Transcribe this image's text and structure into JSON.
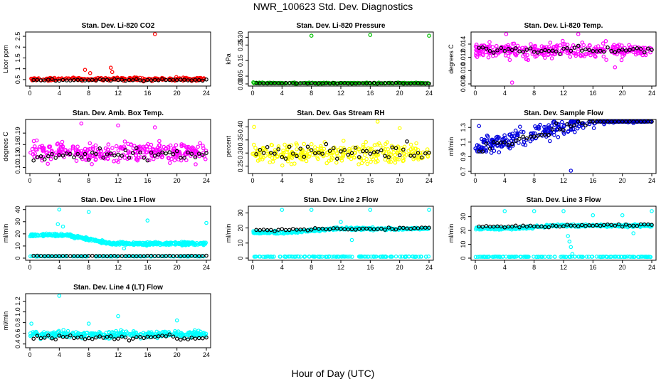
{
  "figure": {
    "title": "NWR_100623  Std. Dev. Diagnostics",
    "xlabel": "Hour of Day (UTC)"
  },
  "chart_data": [
    {
      "type": "scatter",
      "title": "Stan. Dev. Li-820 CO2",
      "ylabel": "Licor ppm",
      "color": "#ff0000",
      "xlim": [
        0,
        24
      ],
      "ylim": [
        0.3,
        2.6
      ],
      "xticks": [
        0,
        4,
        8,
        12,
        16,
        20,
        24
      ],
      "yticks": [
        0.5,
        1,
        1.5,
        2,
        2.5
      ],
      "ytick_labels": [
        "0.5",
        "1",
        "1.5",
        "2",
        "2.5"
      ],
      "base": 0.52,
      "noise": 0.07,
      "count": 260,
      "black_base": 0.48,
      "black_noise": 0.05,
      "outliers": [
        [
          17,
          2.6
        ],
        [
          11,
          1.05
        ],
        [
          7.5,
          0.95
        ],
        [
          11.2,
          0.85
        ],
        [
          8.2,
          0.8
        ]
      ]
    },
    {
      "type": "scatter",
      "title": "Stan. Dev. Li-820 Pressure",
      "ylabel": "kPa",
      "color": "#00c000",
      "xlim": [
        0,
        24
      ],
      "ylim": [
        0,
        0.32
      ],
      "xticks": [
        0,
        4,
        8,
        12,
        16,
        20,
        24
      ],
      "yticks": [
        0,
        0.05,
        0.15,
        0.25,
        0.3
      ],
      "ytick_labels": [
        "0.00",
        "0.05",
        "0.15",
        "0.25",
        "0.30"
      ],
      "base": 0.005,
      "noise": 0.003,
      "count": 260,
      "black_base": 0.004,
      "black_noise": 0.002,
      "outliers": [
        [
          8,
          0.31
        ],
        [
          16,
          0.315
        ],
        [
          24,
          0.31
        ],
        [
          0.1,
          0.01
        ]
      ]
    },
    {
      "type": "scatter",
      "title": "Stan. Dev. Li-820 Temp.",
      "ylabel": "degrees C",
      "color": "#ff00ff",
      "xlim": [
        0,
        24
      ],
      "ylim": [
        0.008,
        0.0155
      ],
      "xticks": [
        0,
        4,
        8,
        12,
        16,
        20,
        24
      ],
      "yticks": [
        0.008,
        0.01,
        0.012,
        0.014
      ],
      "ytick_labels": [
        "0.008",
        "0.010",
        "0.012",
        "0.014"
      ],
      "base": 0.013,
      "noise": 0.0011,
      "count": 320,
      "black_base": 0.0131,
      "black_noise": 0.0005,
      "outliers": [
        [
          4.2,
          0.0155
        ],
        [
          5,
          0.0082
        ],
        [
          19,
          0.0105
        ],
        [
          14,
          0.0155
        ]
      ]
    },
    {
      "type": "scatter",
      "title": "Stan. Dev. Amb. Box Temp.",
      "ylabel": "degrees C",
      "color": "#ff00ff",
      "xlim": [
        0,
        24
      ],
      "ylim": [
        0.09,
        0.22
      ],
      "xticks": [
        0,
        4,
        8,
        12,
        16,
        20,
        24
      ],
      "yticks": [
        0.1,
        0.13,
        0.16,
        0.19
      ],
      "ytick_labels": [
        "0.10",
        "0.13",
        "0.16",
        "0.19"
      ],
      "base": 0.14,
      "noise": 0.025,
      "count": 320,
      "black_base": 0.135,
      "black_noise": 0.015,
      "outliers": [
        [
          7,
          0.215
        ],
        [
          12,
          0.21
        ],
        [
          17,
          0.205
        ]
      ]
    },
    {
      "type": "scatter",
      "title": "Stan. Dev. Gas Stream RH",
      "ylabel": "percent",
      "color": "#ffff00",
      "xlim": [
        0,
        24
      ],
      "ylim": [
        0.23,
        0.42
      ],
      "xticks": [
        0,
        4,
        8,
        12,
        16,
        20,
        24
      ],
      "yticks": [
        0.25,
        0.3,
        0.35,
        0.4
      ],
      "ytick_labels": [
        "0.25",
        "0.30",
        "0.35",
        "0.40"
      ],
      "base": 0.3,
      "noise": 0.035,
      "count": 300,
      "black_base": 0.305,
      "black_noise": 0.03,
      "outliers": [
        [
          17,
          0.42
        ],
        [
          0.2,
          0.4
        ],
        [
          20,
          0.395
        ]
      ]
    },
    {
      "type": "scatter",
      "title": "Stan. Dev. Sample Flow",
      "ylabel": "ml/min",
      "color": "#0000dd",
      "xlim": [
        0,
        24
      ],
      "ylim": [
        0.7,
        1.38
      ],
      "xticks": [
        0,
        4,
        8,
        12,
        16,
        20,
        24
      ],
      "yticks": [
        0.7,
        0.9,
        1.1,
        1.3
      ],
      "ytick_labels": [
        "0.7",
        "0.9",
        "1.1",
        "1.3"
      ],
      "base": 1.02,
      "noise": 0.12,
      "count": 320,
      "black_base": 1.0,
      "black_noise": 0.08,
      "outliers": [
        [
          21.5,
          1.36
        ],
        [
          13,
          0.71
        ],
        [
          0.5,
          1.32
        ]
      ],
      "trend": 0.004
    },
    {
      "type": "scatter",
      "title": "Stan. Dev. Line 1 Flow",
      "ylabel": "ml/min",
      "color": "#00ffff",
      "xlim": [
        0,
        24
      ],
      "ylim": [
        0,
        41
      ],
      "xticks": [
        0,
        4,
        8,
        12,
        16,
        20,
        24
      ],
      "yticks": [
        0,
        10,
        20,
        30,
        40
      ],
      "ytick_labels": [
        "0",
        "10",
        "20",
        "30",
        "40"
      ],
      "band": {
        "start": 19,
        "end": 12,
        "noise": 1.2,
        "count": 420
      },
      "low_line": 1.5,
      "black_base": 1.8,
      "black_noise": 0.2,
      "outliers": [
        [
          4,
          40
        ],
        [
          8,
          38
        ],
        [
          16,
          31
        ],
        [
          24,
          29
        ],
        [
          12.8,
          8
        ],
        [
          4.5,
          26
        ],
        [
          3.8,
          28
        ]
      ]
    },
    {
      "type": "scatter",
      "title": "Stan. Dev. Line 2 Flow",
      "ylabel": "ml/min",
      "color": "#00ffff",
      "xlim": [
        0,
        24
      ],
      "ylim": [
        0,
        33
      ],
      "xticks": [
        0,
        4,
        8,
        12,
        16,
        20,
        24
      ],
      "yticks": [
        0,
        10,
        20,
        30
      ],
      "ytick_labels": [
        "0",
        "10",
        "20",
        "30"
      ],
      "band": {
        "start": 17,
        "end": 19.5,
        "noise": 0.8,
        "count": 380
      },
      "low_line": 1.0,
      "black_base": 18.5,
      "black_noise": 0.8,
      "black_trend": 0.06,
      "outliers": [
        [
          4,
          32
        ],
        [
          8,
          32
        ],
        [
          16,
          32
        ],
        [
          24,
          32
        ],
        [
          12,
          24
        ],
        [
          13.5,
          12
        ]
      ]
    },
    {
      "type": "scatter",
      "title": "Stan. Dev. Line 3 Flow",
      "ylabel": "ml/min",
      "color": "#00ffff",
      "xlim": [
        0,
        24
      ],
      "ylim": [
        0,
        36
      ],
      "xticks": [
        0,
        4,
        8,
        12,
        16,
        20,
        24
      ],
      "yticks": [
        0,
        10,
        20,
        30
      ],
      "ytick_labels": [
        "0",
        "10",
        "20",
        "30"
      ],
      "band": {
        "start": 21.5,
        "end": 23.5,
        "noise": 0.9,
        "count": 380
      },
      "low_line": 1.0,
      "black_base": 22.5,
      "black_noise": 0.8,
      "black_trend": 0.06,
      "outliers": [
        [
          4,
          34
        ],
        [
          8,
          34
        ],
        [
          12,
          34
        ],
        [
          16,
          31
        ],
        [
          20,
          31
        ],
        [
          24,
          34
        ],
        [
          12.8,
          12
        ],
        [
          13,
          8
        ],
        [
          13.2,
          3
        ],
        [
          12.6,
          16
        ],
        [
          21.5,
          18
        ]
      ]
    },
    {
      "type": "scatter",
      "title": "Stan. Dev. Line 4 (LT) Flow",
      "ylabel": "ml/min",
      "color": "#00ffff",
      "xlim": [
        0,
        24
      ],
      "ylim": [
        0.37,
        1.3
      ],
      "xticks": [
        0,
        4,
        8,
        12,
        16,
        20,
        24
      ],
      "yticks": [
        0.4,
        0.6,
        0.8,
        1.0,
        1.2
      ],
      "ytick_labels": [
        "0.4",
        "0.6",
        "0.8",
        "1.0",
        "1.2"
      ],
      "base": 0.58,
      "noise": 0.06,
      "count": 340,
      "black_base": 0.52,
      "black_noise": 0.05,
      "outliers": [
        [
          4,
          1.3
        ],
        [
          12,
          0.92
        ],
        [
          20,
          0.84
        ],
        [
          8,
          0.78
        ],
        [
          0.2,
          0.78
        ]
      ]
    }
  ]
}
